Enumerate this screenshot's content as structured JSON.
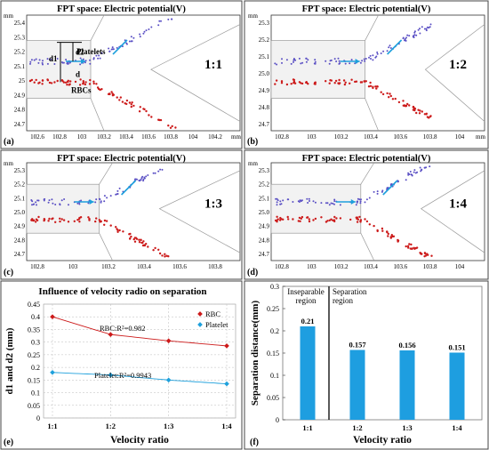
{
  "panels": [
    {
      "tag": "(a)",
      "title": "FPT space: Electric potential(V)",
      "ratio": "1:1",
      "unit_y": "mm",
      "unit_x": "mm",
      "yticks": [
        "25.4",
        "25.3",
        "25.2",
        "25.1",
        "25",
        "24.9",
        "24.8",
        "24.7"
      ],
      "xticks": [
        "102.6",
        "102.8",
        "103",
        "103.2",
        "103.4",
        "103.6",
        "103.8",
        "104",
        "104.2"
      ],
      "annotations": [
        "Platelets",
        "RBCs",
        "d1",
        "d2",
        "d"
      ]
    },
    {
      "tag": "(b)",
      "title": "FPT space: Electric potential(V)",
      "ratio": "1:2",
      "unit_y": "mm",
      "unit_x": "mm",
      "yticks": [
        "25.3",
        "25.2",
        "25.1",
        "25.0",
        "24.9",
        "24.8",
        "24.7"
      ],
      "xticks": [
        "102.8",
        "103",
        "103.2",
        "103.4",
        "103.6",
        "103.8",
        "104"
      ],
      "annotations": []
    },
    {
      "tag": "(c)",
      "title": "FPT space: Electric potential(V)",
      "ratio": "1:3",
      "unit_y": "mm",
      "unit_x": "",
      "yticks": [
        "25.3",
        "25.2",
        "25.1",
        "25.0",
        "24.9",
        "24.8",
        "24.7"
      ],
      "xticks": [
        "102.8",
        "103",
        "103.2",
        "103.4",
        "103.6",
        "103.8"
      ],
      "annotations": []
    },
    {
      "tag": "(d)",
      "title": "FPT space: Electric potential(V)",
      "ratio": "1:4",
      "unit_y": "mm",
      "unit_x": "",
      "yticks": [
        "25.3",
        "25.2",
        "25.1",
        "25.0",
        "24.9",
        "24.8",
        "24.7"
      ],
      "xticks": [
        "102.8",
        "103",
        "103.2",
        "103.4",
        "103.6",
        "103.8",
        "104"
      ],
      "annotations": []
    }
  ],
  "colors": {
    "rbc": "#cc1a1a",
    "platelet_dots": "#5a4fc4",
    "platelet_line": "#1ea0dc",
    "arrow": "#1ea0dc",
    "bar": "#1e9ee0"
  },
  "chart_data": [
    {
      "type": "line",
      "tag": "(e)",
      "title": "Influence of velocity radio on separation",
      "xlabel": "Velocity ratio",
      "ylabel": "d1 and d2 (mm)",
      "categories": [
        "1:1",
        "1:2",
        "1:3",
        "1:4"
      ],
      "ylim": [
        0,
        0.45
      ],
      "yticks": [
        "0",
        "0.05",
        "0.1",
        "0.15",
        "0.2",
        "0.25",
        "0.3",
        "0.35",
        "0.4",
        "0.45"
      ],
      "legend_position": "top-right",
      "grid": true,
      "series": [
        {
          "name": "RBC",
          "values": [
            0.4,
            0.33,
            0.305,
            0.285
          ],
          "fit_label": "RBC:R²=0.982"
        },
        {
          "name": "Platelet",
          "values": [
            0.18,
            0.17,
            0.15,
            0.135
          ],
          "fit_label": "Platelet:R²=0.9943"
        }
      ]
    },
    {
      "type": "bar",
      "tag": "(f)",
      "title": "",
      "xlabel": "Velocity ratio",
      "ylabel": "Separation distance(mm)",
      "categories": [
        "1:1",
        "1:2",
        "1:3",
        "1:4"
      ],
      "values": [
        0.21,
        0.157,
        0.156,
        0.151
      ],
      "value_labels": [
        "0.21",
        "0.157",
        "0.156",
        "0.151"
      ],
      "ylim": [
        0,
        0.3
      ],
      "yticks": [
        "0",
        "0.05",
        "0.1",
        "0.15",
        "0.2",
        "0.25",
        "0.3"
      ],
      "regions": [
        "Inseparable\nregion",
        "Separation\nregion"
      ]
    }
  ]
}
